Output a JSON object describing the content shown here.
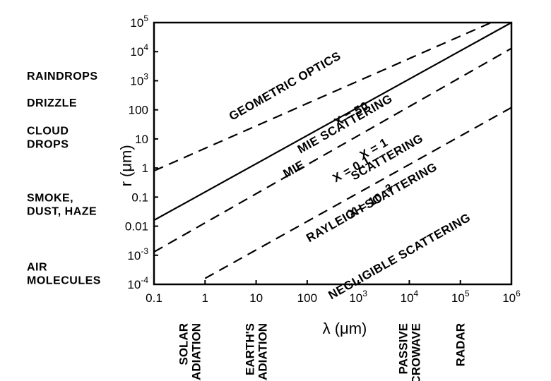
{
  "chart_data": {
    "type": "line",
    "xscale": "log",
    "yscale": "log",
    "xlabel": "λ (μm)",
    "ylabel": "r (μm)",
    "xlim": [
      0.1,
      1000000
    ],
    "ylim": [
      0.0001,
      100000
    ],
    "grid": false,
    "x_ticks": [
      {
        "b": "0.1",
        "e": ""
      },
      {
        "b": "1",
        "e": ""
      },
      {
        "b": "10",
        "e": ""
      },
      {
        "b": "100",
        "e": ""
      },
      {
        "b": "10",
        "e": "3"
      },
      {
        "b": "10",
        "e": "4"
      },
      {
        "b": "10",
        "e": "5"
      },
      {
        "b": "10",
        "e": "6"
      }
    ],
    "y_ticks": [
      {
        "b": "10",
        "e": "-4"
      },
      {
        "b": "10",
        "e": "-3"
      },
      {
        "b": "0.01",
        "e": ""
      },
      {
        "b": "0.1",
        "e": ""
      },
      {
        "b": "1",
        "e": ""
      },
      {
        "b": "10",
        "e": ""
      },
      {
        "b": "100",
        "e": ""
      },
      {
        "b": "10",
        "e": "3"
      },
      {
        "b": "10",
        "e": "4"
      },
      {
        "b": "10",
        "e": "5"
      }
    ],
    "series": [
      {
        "x": [
          0.1,
          400000
        ],
        "y": [
          0.8,
          100000
        ],
        "style": "dashed"
      },
      {
        "x": [
          0.1,
          1000000
        ],
        "y": [
          0.016,
          100000
        ],
        "style": "solid"
      },
      {
        "x": [
          0.1,
          1000000
        ],
        "y": [
          0.0013,
          13000
        ],
        "style": "dashed"
      },
      {
        "x": [
          1,
          1000000
        ],
        "y": [
          0.00016,
          120
        ],
        "style": "dashed"
      }
    ],
    "annotations": [
      {
        "text": "GEOMETRIC OPTICS",
        "x": 40,
        "y": 500
      },
      {
        "text": "X = 50",
        "x": 800,
        "y": 55
      },
      {
        "text": "MIE SCATTERING",
        "x": 600,
        "y": 25
      },
      {
        "text": "X = 1",
        "x": 2200,
        "y": 3.5
      },
      {
        "text": "MIE",
        "x": 60,
        "y": 0.7
      },
      {
        "text": "SCATTERING",
        "x": 4000,
        "y": 1.8
      },
      {
        "text": "X = 0.1",
        "x": 800,
        "y": 0.7
      },
      {
        "text": "RAYLEIGH SCATTERING",
        "x": 2000,
        "y": 0.05
      },
      {
        "text": "X = 10",
        "x": 1500,
        "y": 0.04
      },
      {
        "text": "-3",
        "x": 4000,
        "y": 0.15
      },
      {
        "text": "NEGLIGIBLE SCATTERING",
        "x": 7000,
        "y": 0.0007
      }
    ],
    "y_categories": [
      {
        "lines": [
          "RAINDROPS"
        ],
        "r": 1500
      },
      {
        "lines": [
          "DRIZZLE"
        ],
        "r": 180
      },
      {
        "lines": [
          "CLOUD",
          "DROPS"
        ],
        "r": 12
      },
      {
        "lines": [
          "SMOKE,",
          "DUST, HAZE"
        ],
        "r": 0.06
      },
      {
        "lines": [
          "AIR",
          "MOLECULES"
        ],
        "r": 0.00025
      }
    ],
    "x_categories": [
      {
        "lines": [
          "SOLAR",
          "RADIATION"
        ],
        "wl": 0.5
      },
      {
        "lines": [
          "EARTH'S",
          "RADIATION"
        ],
        "wl": 10
      },
      {
        "lines": [
          "PASSIVE",
          "MICROWAVE"
        ],
        "wl": 10000
      },
      {
        "lines": [
          "RADAR"
        ],
        "wl": 100000
      }
    ]
  }
}
